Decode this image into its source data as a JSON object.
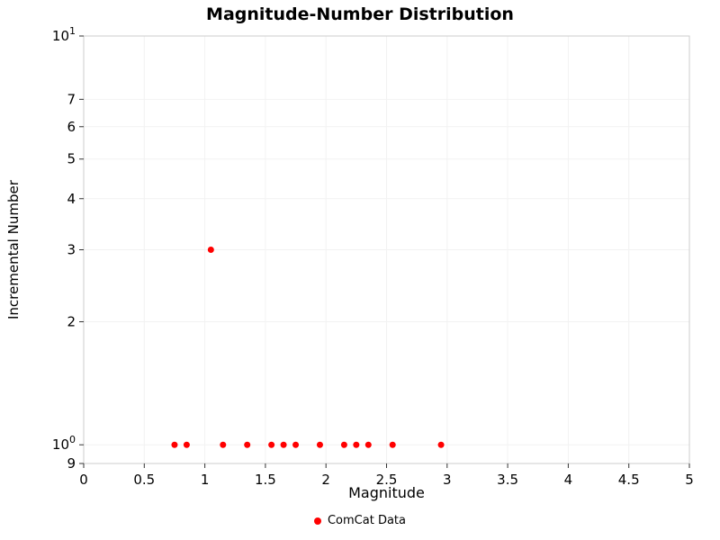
{
  "chart": {
    "title": "Magnitude-Number Distribution",
    "xlabel": "Magnitude",
    "ylabel": "Incremental Number",
    "legend_label": "ComCat Data"
  },
  "chart_data": {
    "type": "scatter",
    "title": "Magnitude-Number Distribution",
    "xlabel": "Magnitude",
    "ylabel": "Incremental Number",
    "xlim": [
      0,
      5
    ],
    "ylim": [
      0.9,
      10
    ],
    "yscale": "log",
    "grid": true,
    "legend_position": "bottom-center",
    "marker_color": "#ff0000",
    "border_color": "#cccccc",
    "grid_color": "#f2f2f2",
    "tick_color": "#333333",
    "x_ticks": [
      {
        "v": 0,
        "label": "0"
      },
      {
        "v": 0.5,
        "label": "0.5"
      },
      {
        "v": 1,
        "label": "1"
      },
      {
        "v": 1.5,
        "label": "1.5"
      },
      {
        "v": 2,
        "label": "2"
      },
      {
        "v": 2.5,
        "label": "2.5"
      },
      {
        "v": 3,
        "label": "3"
      },
      {
        "v": 3.5,
        "label": "3.5"
      },
      {
        "v": 4,
        "label": "4"
      },
      {
        "v": 4.5,
        "label": "4.5"
      },
      {
        "v": 5,
        "label": "5"
      }
    ],
    "y_ticks": [
      {
        "v": 10,
        "label": "10",
        "exp": "1"
      },
      {
        "v": 7,
        "label": "7"
      },
      {
        "v": 6,
        "label": "6"
      },
      {
        "v": 5,
        "label": "5"
      },
      {
        "v": 4,
        "label": "4"
      },
      {
        "v": 3,
        "label": "3"
      },
      {
        "v": 2,
        "label": "2"
      },
      {
        "v": 1,
        "label": "10",
        "exp": "0"
      },
      {
        "v": 0.9,
        "label": "9"
      }
    ],
    "series": [
      {
        "name": "ComCat Data",
        "x": [
          0.75,
          0.85,
          1.05,
          1.15,
          1.35,
          1.55,
          1.65,
          1.75,
          1.95,
          2.15,
          2.25,
          2.35,
          2.55,
          2.95
        ],
        "y": [
          1,
          1,
          3,
          1,
          1,
          1,
          1,
          1,
          1,
          1,
          1,
          1,
          1,
          1
        ]
      }
    ]
  }
}
